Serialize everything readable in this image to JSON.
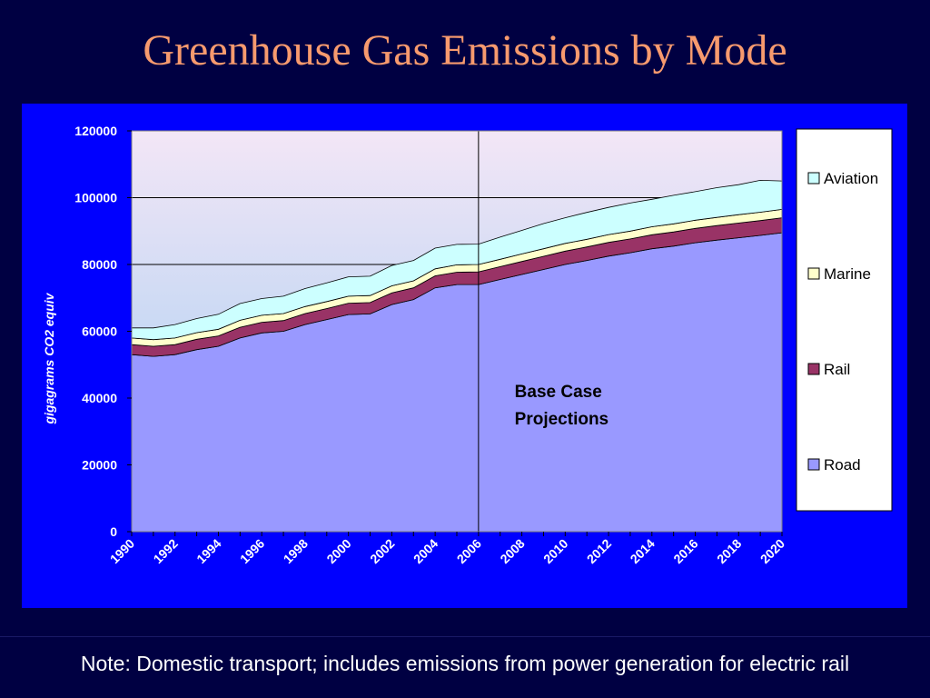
{
  "title": "Greenhouse Gas Emissions by Mode",
  "note": "Note: Domestic transport; includes emissions from power generation for electric rail",
  "colors": {
    "background": "#000042",
    "panel": "#0000FF",
    "title": "#F79A6E",
    "road": "#9999FF",
    "rail": "#993366",
    "marine": "#FFFFCC",
    "aviation": "#CCFFFF",
    "plot_top": "#F3E6F6",
    "plot_bottom": "#9FCCF2"
  },
  "chart_data": {
    "type": "area",
    "stacked": true,
    "ylabel": "gigagrams CO2 equiv",
    "xlabel": "",
    "ylim": [
      0,
      120000
    ],
    "yticks": [
      "0",
      "20000",
      "40000",
      "60000",
      "80000",
      "100000",
      "120000"
    ],
    "xticks": [
      "1990",
      "1992",
      "1994",
      "1996",
      "1998",
      "2000",
      "2002",
      "2004",
      "2006",
      "2008",
      "2010",
      "2012",
      "2014",
      "2016",
      "2018",
      "2020"
    ],
    "grid": true,
    "legend_position": "right",
    "vertical_marker_x": 2006,
    "annotation": "Base Case\nProjections",
    "x": [
      1990,
      1991,
      1992,
      1993,
      1994,
      1995,
      1996,
      1997,
      1998,
      1999,
      2000,
      2001,
      2002,
      2003,
      2004,
      2005,
      2006,
      2007,
      2008,
      2009,
      2010,
      2011,
      2012,
      2013,
      2014,
      2015,
      2016,
      2017,
      2018,
      2019,
      2020
    ],
    "series": [
      {
        "name": "Road",
        "values": [
          53000,
          52500,
          53000,
          54500,
          55500,
          58000,
          59500,
          60000,
          62000,
          63500,
          65000,
          65200,
          68000,
          69500,
          73000,
          74000,
          74000,
          75500,
          77000,
          78500,
          80000,
          81200,
          82500,
          83500,
          84700,
          85500,
          86500,
          87300,
          88000,
          88700,
          89500
        ]
      },
      {
        "name": "Rail",
        "values": [
          3000,
          3000,
          3000,
          3100,
          3100,
          3200,
          3200,
          3200,
          3300,
          3300,
          3400,
          3400,
          3500,
          3500,
          3600,
          3700,
          3800,
          3850,
          3900,
          3950,
          4000,
          4050,
          4100,
          4150,
          4200,
          4250,
          4300,
          4350,
          4400,
          4450,
          4500
        ]
      },
      {
        "name": "Marine",
        "values": [
          2000,
          2000,
          2000,
          2000,
          2000,
          2100,
          2100,
          2100,
          2100,
          2100,
          2100,
          2100,
          2100,
          2100,
          2100,
          2200,
          2200,
          2200,
          2250,
          2250,
          2300,
          2300,
          2350,
          2350,
          2400,
          2400,
          2450,
          2450,
          2500,
          2500,
          2500
        ]
      },
      {
        "name": "Aviation",
        "values": [
          3000,
          3500,
          4000,
          4200,
          4500,
          5000,
          5000,
          5200,
          5400,
          5600,
          5800,
          5800,
          6100,
          6100,
          6200,
          6100,
          6100,
          6650,
          7050,
          7550,
          7700,
          8050,
          8150,
          8400,
          8200,
          8550,
          8550,
          8900,
          9000,
          9550,
          8500
        ]
      }
    ]
  }
}
